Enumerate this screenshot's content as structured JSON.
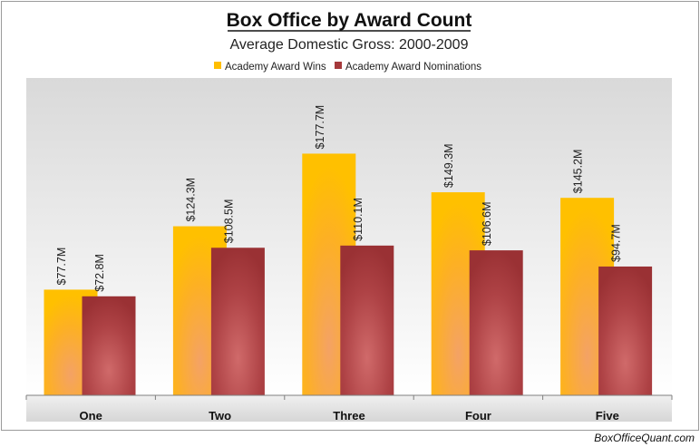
{
  "chart_data": {
    "type": "bar",
    "title": "Box Office by Award Count",
    "subtitle": "Average Domestic Gross: 2000-2009",
    "categories": [
      "One",
      "Two",
      "Three",
      "Four",
      "Five"
    ],
    "series": [
      {
        "name": "Academy Award Wins",
        "values": [
          77.7,
          124.3,
          177.7,
          149.3,
          145.2
        ],
        "labels": [
          "$77.7M",
          "$124.3M",
          "$177.7M",
          "$149.3M",
          "$145.2M"
        ],
        "color": "#FFBE00"
      },
      {
        "name": "Academy Award Nominations",
        "values": [
          72.8,
          108.5,
          110.1,
          106.6,
          94.7
        ],
        "labels": [
          "$72.8M",
          "$108.5M",
          "$110.1M",
          "$106.6M",
          "$94.7M"
        ],
        "color": "#A5393B"
      }
    ],
    "ylim": [
      0,
      200
    ],
    "grid": false,
    "legend": "top"
  },
  "footer": "BoxOfficeQuant.com"
}
